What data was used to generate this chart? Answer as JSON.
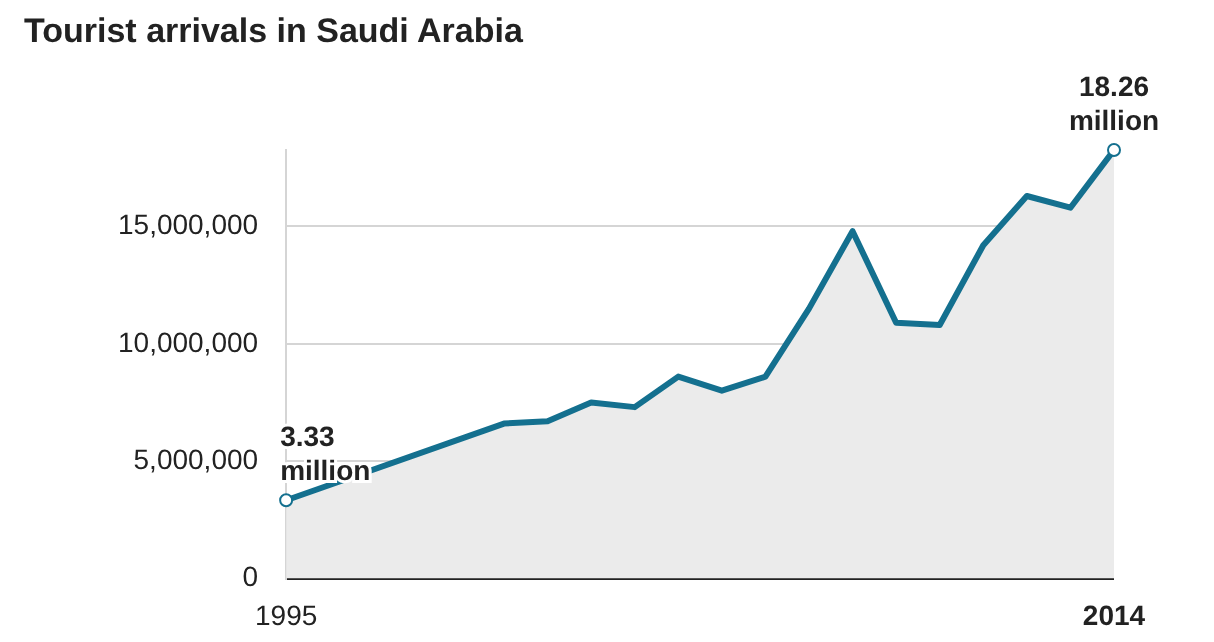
{
  "chart_data": {
    "type": "area",
    "title": "Tourist arrivals in Saudi Arabia",
    "x": [
      1995,
      2000,
      2001,
      2002,
      2003,
      2004,
      2005,
      2006,
      2007,
      2008,
      2009,
      2010,
      2011,
      2012,
      2013,
      2014
    ],
    "series": [
      {
        "color": "#14708f",
        "values": [
          3330000,
          6600000,
          6700000,
          7500000,
          7300000,
          8600000,
          8000000,
          8600000,
          11500000,
          14800000,
          10900000,
          10800000,
          14200000,
          16300000,
          15800000,
          18260000
        ]
      }
    ],
    "xlim": [
      1995,
      2014
    ],
    "xticks": [
      1995,
      2014
    ],
    "ylim": [
      0,
      18260000
    ],
    "yticks": [
      {
        "value": 0,
        "label": "0"
      },
      {
        "value": 5000000,
        "label": "5,000,000"
      },
      {
        "value": 10000000,
        "label": "10,000,000"
      },
      {
        "value": 15000000,
        "label": "15,000,000"
      }
    ],
    "grid": "y",
    "legend": false,
    "marker": "none",
    "annotations": [
      {
        "text": "3.33\nmillion",
        "x": 1995,
        "y": 3330000
      },
      {
        "text": "18.26\nmillion",
        "x": 2014,
        "y": 18260000
      }
    ]
  }
}
